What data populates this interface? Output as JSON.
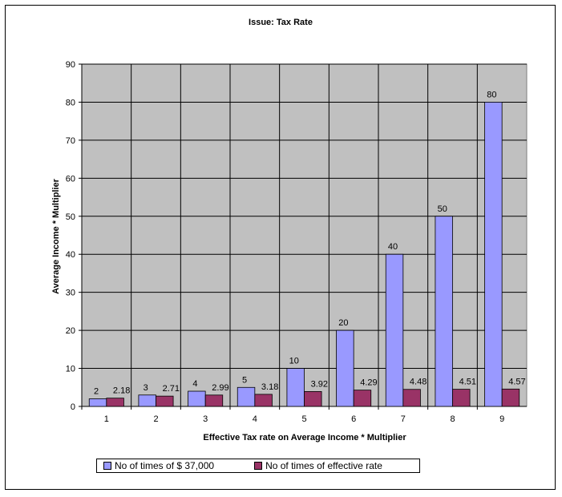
{
  "chart_data": {
    "type": "bar",
    "title": "Issue: Tax Rate",
    "xlabel": "Effective Tax rate on Average Income * Multiplier",
    "ylabel": "Average Income * Multiplier",
    "categories": [
      "1",
      "2",
      "3",
      "4",
      "5",
      "6",
      "7",
      "8",
      "9"
    ],
    "ylim": [
      0,
      90
    ],
    "yticks": [
      0,
      10,
      20,
      30,
      40,
      50,
      60,
      70,
      80,
      90
    ],
    "grid": true,
    "legend_position": "bottom",
    "series": [
      {
        "name": "No of times of $ 37,000",
        "color": "#9999ff",
        "values": [
          2,
          3,
          4,
          5,
          10,
          20,
          40,
          50,
          80
        ],
        "labels": [
          "2",
          "3",
          "4",
          "5",
          "10",
          "20",
          "40",
          "50",
          "80"
        ]
      },
      {
        "name": "No of times of effective rate",
        "color": "#993366",
        "values": [
          2.18,
          2.71,
          2.99,
          3.18,
          3.92,
          4.29,
          4.48,
          4.51,
          4.57
        ],
        "labels": [
          "2.18",
          "2.71",
          "2.99",
          "3.18",
          "3.92",
          "4.29",
          "4.48",
          "4.51",
          "4.57"
        ]
      }
    ],
    "plot_background": "#c0c0c0"
  }
}
